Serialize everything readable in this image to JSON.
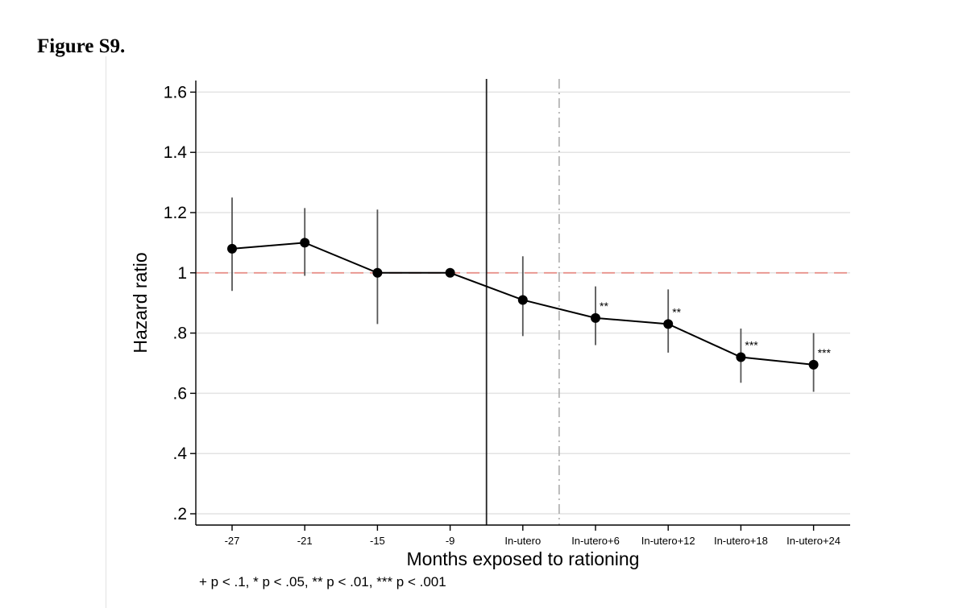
{
  "figure": {
    "heading": "Figure S9.",
    "footnote": "+ p < .1, * p < .05, ** p < .01, *** p < .001"
  },
  "chart_data": {
    "type": "line",
    "title": "",
    "xlabel": "Months exposed to rationing",
    "ylabel": "Hazard ratio",
    "ylim": [
      0.2,
      1.6
    ],
    "y_ticks": [
      0.2,
      0.4,
      0.6,
      0.8,
      1.0,
      1.2,
      1.4,
      1.6
    ],
    "y_tick_labels": [
      ".2",
      ".4",
      ".6",
      ".8",
      "1",
      "1.2",
      "1.4",
      "1.6"
    ],
    "grid": true,
    "categories": [
      "-27",
      "-21",
      "-15",
      "-9",
      "In-utero",
      "In-utero+6",
      "In-utero+12",
      "In-utero+18",
      "In-utero+24"
    ],
    "series": [
      {
        "name": "Hazard ratio",
        "values": [
          1.08,
          1.1,
          1.0,
          1.0,
          0.91,
          0.85,
          0.83,
          0.72,
          0.695
        ],
        "ci_low": [
          0.94,
          0.99,
          0.83,
          null,
          0.79,
          0.76,
          0.735,
          0.635,
          0.605
        ],
        "ci_high": [
          1.25,
          1.215,
          1.21,
          null,
          1.055,
          0.955,
          0.945,
          0.815,
          0.8
        ],
        "significance": [
          "",
          "",
          "",
          "",
          "",
          "**",
          "**",
          "***",
          "***"
        ]
      }
    ],
    "reference_line": {
      "y": 1.0,
      "style": "dashed",
      "color": "#e8928c"
    },
    "vertical_lines": [
      {
        "x_between": [
          3,
          4
        ],
        "position": 0.5,
        "style": "solid"
      },
      {
        "x_between": [
          4,
          5
        ],
        "position": 0.5,
        "style": "dashdot"
      }
    ],
    "colors": {
      "marker": "#000000",
      "line": "#000000",
      "ci": "#555555",
      "grid": "#e3e3e3",
      "reference": "#e8928c",
      "dashdot": "#a6a6a6"
    }
  }
}
